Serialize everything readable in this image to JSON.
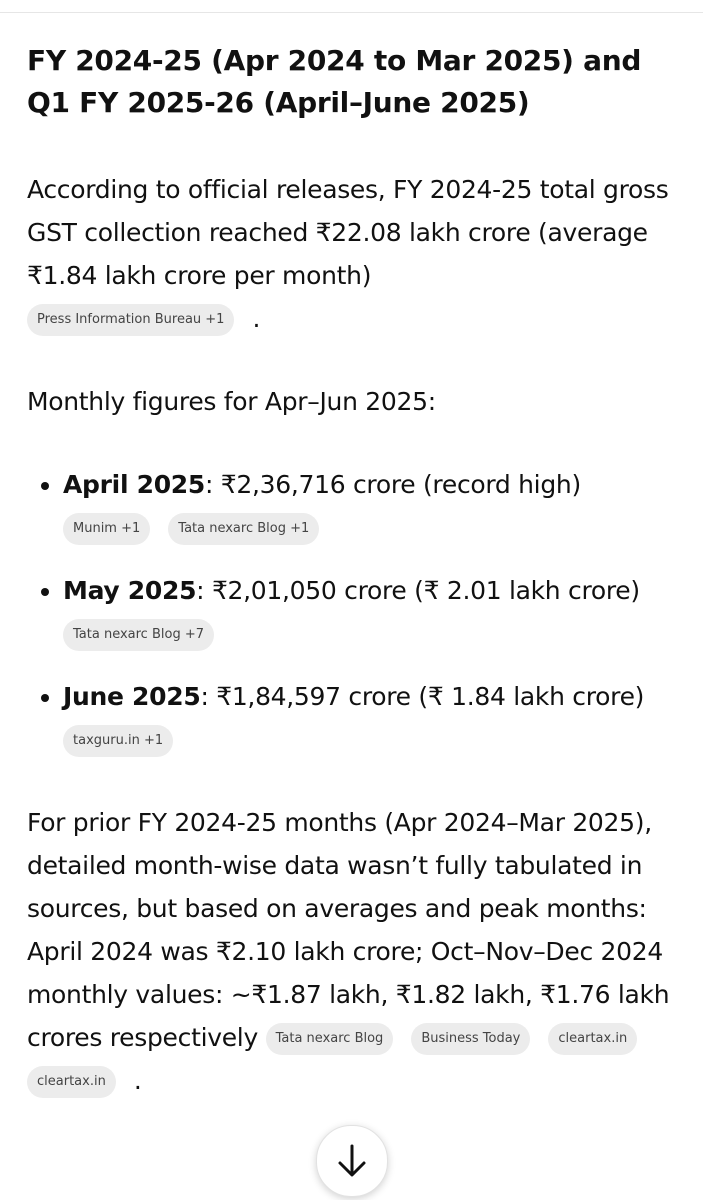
{
  "heading": "FY 2024-25 (Apr 2024 to Mar 2025) and Q1 FY 2025-26 (April–June 2025)",
  "intro": {
    "text": "According to official releases, FY 2024-25 total gross GST collection reached ₹22.08 lakh crore (average ₹1.84 lakh crore per month)",
    "sources": [
      "Press Information Bureau +1"
    ],
    "end": "."
  },
  "monthly_heading": "Monthly figures for Apr–Jun 2025:",
  "items": [
    {
      "label": "April 2025",
      "text": ": ₹2,36,716 crore (record high)",
      "sources": [
        "Munim +1",
        "Tata nexarc Blog +1"
      ]
    },
    {
      "label": "May 2025",
      "text": ": ₹2,01,050 crore (₹ 2.01 lakh crore)",
      "sources": [
        "Tata nexarc Blog +7"
      ]
    },
    {
      "label": "June 2025",
      "text": ": ₹1,84,597 crore (₹ 1.84 lakh crore)",
      "sources": [
        "taxguru.in +1"
      ]
    }
  ],
  "outro": {
    "text": "For prior FY 2024-25 months (Apr 2024–Mar 2025), detailed month-wise data wasn’t fully tabulated in sources, but based on averages and peak months: April 2024 was ₹2.10 lakh crore; Oct–Nov–Dec 2024 monthly values: ~₹1.87 lakh, ₹1.82 lakh, ₹1.76 lakh crores respectively",
    "sources": [
      "Tata nexarc Blog",
      "Business Today",
      "cleartax.in",
      "cleartax.in"
    ],
    "end": "."
  }
}
